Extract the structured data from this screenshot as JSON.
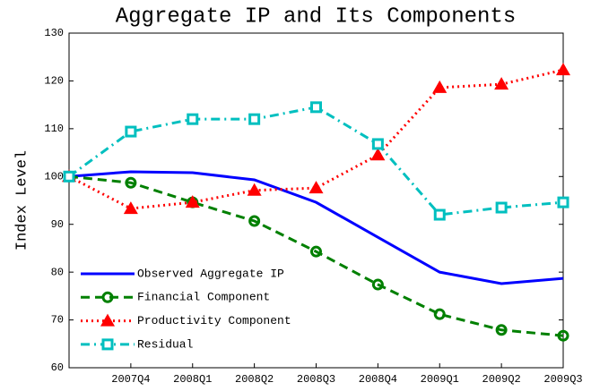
{
  "chart_data": {
    "type": "line",
    "title": "Aggregate IP and Its Components",
    "ylabel": "Index Level",
    "categories": [
      null,
      "2007Q4",
      "2008Q1",
      "2008Q2",
      "2008Q3",
      "2008Q4",
      "2009Q1",
      "2009Q2",
      "2009Q3"
    ],
    "ylim": [
      60,
      130
    ],
    "yticks": [
      60,
      70,
      80,
      90,
      100,
      110,
      120,
      130
    ],
    "legend": "lower left",
    "series": [
      {
        "name": "Observed Aggregate IP",
        "color": "#0000ff",
        "linestyle": "solid",
        "marker": "none",
        "values": [
          100,
          101.0,
          100.8,
          99.3,
          94.6,
          87.3,
          80.0,
          77.6,
          78.7
        ]
      },
      {
        "name": "Financial Component",
        "color": "#008000",
        "linestyle": "dashed",
        "marker": "circle",
        "values": [
          100,
          98.7,
          94.6,
          90.7,
          84.3,
          77.4,
          71.2,
          67.9,
          66.7
        ]
      },
      {
        "name": "Productivity Component",
        "color": "#ff0000",
        "linestyle": "dotted",
        "marker": "triangle",
        "values": [
          100,
          93.3,
          94.6,
          97.1,
          97.6,
          104.5,
          118.6,
          119.3,
          122.3
        ]
      },
      {
        "name": "Residual",
        "color": "#00bfbf",
        "linestyle": "dashdot",
        "marker": "square",
        "values": [
          100,
          109.4,
          112.0,
          112.0,
          114.5,
          106.8,
          92.0,
          93.5,
          94.6
        ]
      }
    ]
  }
}
